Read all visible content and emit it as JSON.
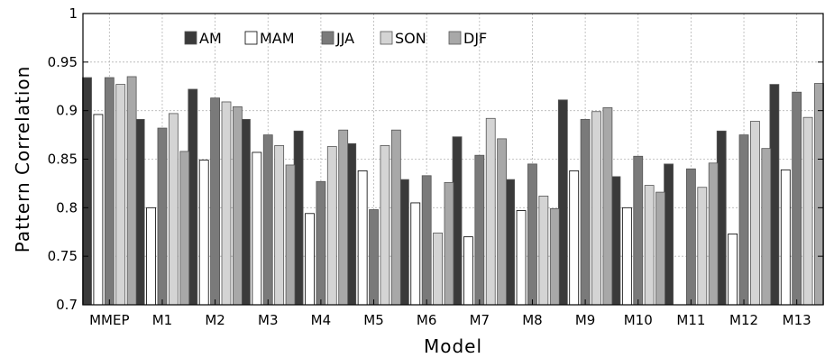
{
  "chart_data": {
    "type": "bar",
    "xlabel": "Model",
    "ylabel": "Pattern Correlation",
    "ylim": [
      0.7,
      1.0
    ],
    "yticks": [
      0.7,
      0.75,
      0.8,
      0.85,
      0.9,
      0.95,
      1.0
    ],
    "ytick_labels": [
      "0.7",
      "0.75",
      "0.8",
      "0.85",
      "0.9",
      "0.95",
      "1"
    ],
    "grid": true,
    "legend_position": "top-left",
    "categories": [
      "MMEP",
      "M1",
      "M2",
      "M3",
      "M4",
      "M5",
      "M6",
      "M7",
      "M8",
      "M9",
      "M10",
      "M11",
      "M12",
      "M13"
    ],
    "series": [
      {
        "name": "AM",
        "color": "#3a3a3a",
        "values": [
          0.934,
          0.891,
          0.922,
          0.891,
          0.879,
          0.866,
          0.829,
          0.873,
          0.829,
          0.911,
          0.832,
          0.845,
          0.879,
          0.927
        ]
      },
      {
        "name": "MAM",
        "color": "#ffffff",
        "values": [
          0.896,
          0.8,
          0.849,
          0.857,
          0.794,
          0.838,
          0.805,
          0.77,
          0.797,
          0.838,
          0.8,
          0.7,
          0.773,
          0.839
        ]
      },
      {
        "name": "JJA",
        "color": "#7a7a7a",
        "values": [
          0.934,
          0.882,
          0.913,
          0.875,
          0.827,
          0.798,
          0.833,
          0.854,
          0.845,
          0.891,
          0.853,
          0.84,
          0.875,
          0.919
        ]
      },
      {
        "name": "SON",
        "color": "#d4d4d4",
        "values": [
          0.927,
          0.897,
          0.909,
          0.864,
          0.863,
          0.864,
          0.774,
          0.892,
          0.812,
          0.899,
          0.823,
          0.821,
          0.889,
          0.893
        ]
      },
      {
        "name": "DJF",
        "color": "#a8a8a8",
        "values": [
          0.935,
          0.858,
          0.904,
          0.844,
          0.88,
          0.88,
          0.826,
          0.871,
          0.799,
          0.903,
          0.816,
          0.846,
          0.861,
          0.928
        ]
      }
    ]
  }
}
